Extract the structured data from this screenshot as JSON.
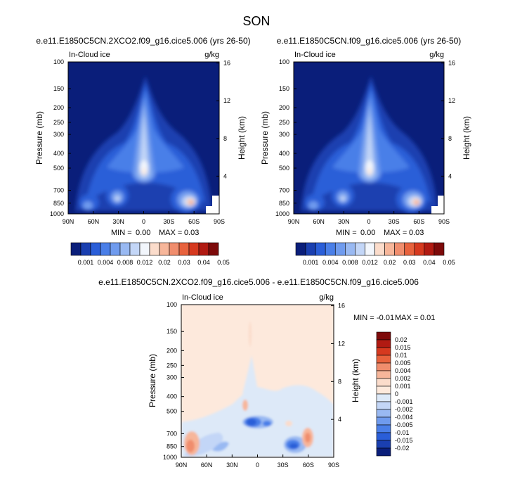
{
  "page": {
    "title": "SON"
  },
  "chart_data": [
    {
      "type": "heatmap",
      "title": "e.e11.E1850C5CN.2XCO2.f09_g16.cice5.006 (yrs 26-50)",
      "variable": "In-Cloud ice",
      "units": "g/kg",
      "xlabel": "",
      "ylabel": "Pressure (mb)",
      "y2label": "Height (km)",
      "x_ticks": [
        "90N",
        "60N",
        "30N",
        "0",
        "30S",
        "60S",
        "90S"
      ],
      "y_ticks": [
        "100",
        "150",
        "200",
        "250",
        "300",
        "400",
        "500",
        "700",
        "850",
        "1000"
      ],
      "y2_ticks": [
        "16",
        "12",
        "8",
        "4"
      ],
      "min_label": "MIN =",
      "min_value": "0.00",
      "max_label": "MAX =",
      "max_value": "0.03",
      "colorbar_levels": [
        "0.001",
        "0.004",
        "0.008",
        "0.012",
        "0.02",
        "0.03",
        "0.04",
        "0.05"
      ],
      "colorbar_colors": [
        "#0a1e7a",
        "#1a3fb0",
        "#2a5ed8",
        "#4a7fe8",
        "#6f9bee",
        "#99b9f2",
        "#c3d6f7",
        "#f2f6fc",
        "#fbdccb",
        "#f7b69a",
        "#f08d6d",
        "#e8623d",
        "#d6391f",
        "#b11a12",
        "#7d0a0a"
      ]
    },
    {
      "type": "heatmap",
      "title": "e.e11.E1850C5CN.f09_g16.cice5.006 (yrs 26-50)",
      "variable": "In-Cloud ice",
      "units": "g/kg",
      "xlabel": "",
      "ylabel": "Pressure (mb)",
      "y2label": "Height (km)",
      "x_ticks": [
        "90N",
        "60N",
        "30N",
        "0",
        "30S",
        "60S",
        "90S"
      ],
      "y_ticks": [
        "100",
        "150",
        "200",
        "250",
        "300",
        "400",
        "500",
        "700",
        "850",
        "1000"
      ],
      "y2_ticks": [
        "16",
        "12",
        "8",
        "4"
      ],
      "min_label": "MIN =",
      "min_value": "0.00",
      "max_label": "MAX =",
      "max_value": "0.03",
      "colorbar_levels": [
        "0.001",
        "0.004",
        "0.008",
        "0.012",
        "0.02",
        "0.03",
        "0.04",
        "0.05"
      ],
      "colorbar_colors": [
        "#0a1e7a",
        "#1a3fb0",
        "#2a5ed8",
        "#4a7fe8",
        "#6f9bee",
        "#99b9f2",
        "#c3d6f7",
        "#f2f6fc",
        "#fbdccb",
        "#f7b69a",
        "#f08d6d",
        "#e8623d",
        "#d6391f",
        "#b11a12",
        "#7d0a0a"
      ]
    },
    {
      "type": "heatmap",
      "title": "e.e11.E1850C5CN.2XCO2.f09_g16.cice5.006 - e.e11.E1850C5CN.f09_g16.cice5.006",
      "variable": "In-Cloud ice",
      "units": "g/kg",
      "xlabel": "",
      "ylabel": "Pressure (mb)",
      "y2label": "Height (km)",
      "x_ticks": [
        "90N",
        "60N",
        "30N",
        "0",
        "30S",
        "60S",
        "90S"
      ],
      "y_ticks": [
        "100",
        "150",
        "200",
        "250",
        "300",
        "400",
        "500",
        "700",
        "850",
        "1000"
      ],
      "y2_ticks": [
        "16",
        "12",
        "8",
        "4"
      ],
      "min_label": "MIN =",
      "min_value": "-0.01",
      "max_label": "MAX =",
      "max_value": "0.01",
      "colorbar_levels": [
        "0.02",
        "0.015",
        "0.01",
        "0.005",
        "0.004",
        "0.002",
        "0.001",
        "0",
        "-0.001",
        "-0.002",
        "-0.004",
        "-0.005",
        "-0.01",
        "-0.015",
        "-0.02"
      ],
      "colorbar_colors": [
        "#7d0a0a",
        "#b11a12",
        "#d6391f",
        "#e8623d",
        "#f08d6d",
        "#f7b69a",
        "#fbdccb",
        "#fde9dc",
        "#dde9f8",
        "#c3d6f7",
        "#99b9f2",
        "#6f9bee",
        "#4a7fe8",
        "#2a5ed8",
        "#1a3fb0",
        "#0a1e7a"
      ]
    }
  ]
}
